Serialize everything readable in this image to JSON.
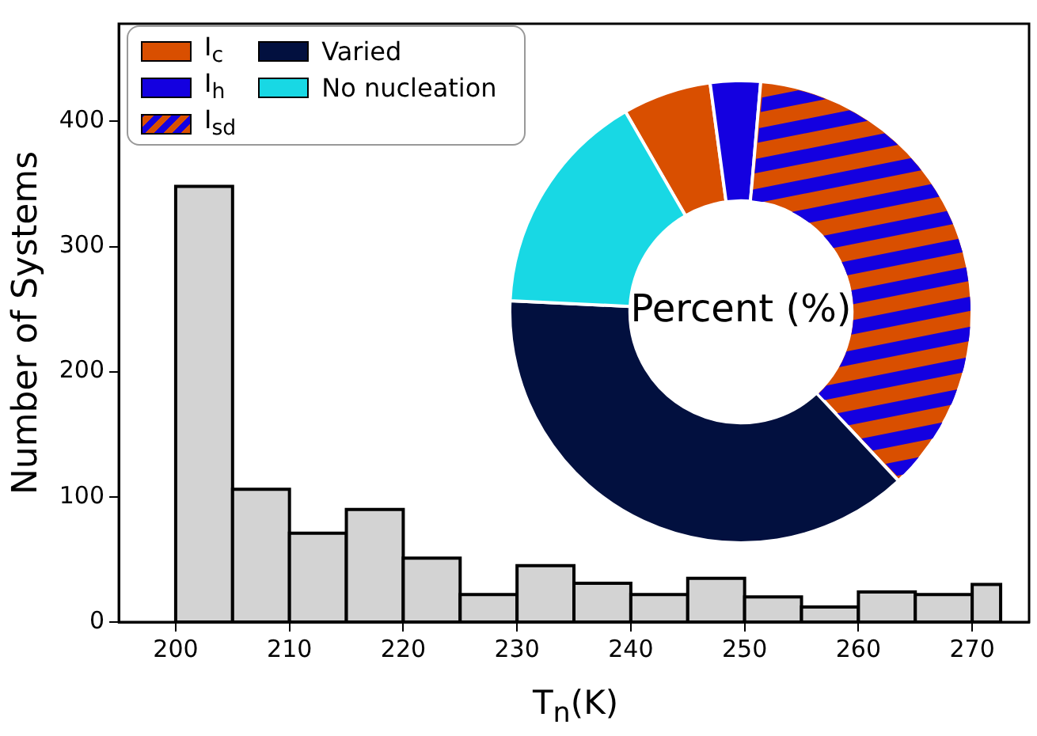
{
  "chart_data": [
    {
      "type": "histogram",
      "xlabel": "T$_{n}$(K)",
      "ylabel": "Number of Systems",
      "bins": [
        200,
        205,
        210,
        215,
        220,
        225,
        230,
        235,
        240,
        245,
        250,
        255,
        260,
        265,
        270,
        272.5
      ],
      "values": [
        348,
        106,
        71,
        90,
        51,
        22,
        45,
        31,
        22,
        35,
        20,
        12,
        24,
        22,
        30
      ],
      "color": "#d3d3d3",
      "xlim": [
        195,
        275
      ],
      "xticks": [
        200,
        210,
        220,
        230,
        240,
        250,
        260,
        270
      ],
      "ylim": [
        0,
        478
      ],
      "yticks": [
        0,
        100,
        200,
        300,
        400
      ]
    },
    {
      "type": "donut",
      "title": "Percent (%)",
      "categories": [
        "I$_{c}$",
        "I$_{h}$",
        "I$_{sd}$",
        "Varied",
        "No nucleation"
      ],
      "values": [
        6.2,
        3.5,
        36.7,
        37.7,
        15.9
      ],
      "colors": [
        "#d94f00",
        "#1400e0",
        "#d94f00",
        "#02103f",
        "#18d8e4"
      ],
      "legend": "top left"
    }
  ]
}
